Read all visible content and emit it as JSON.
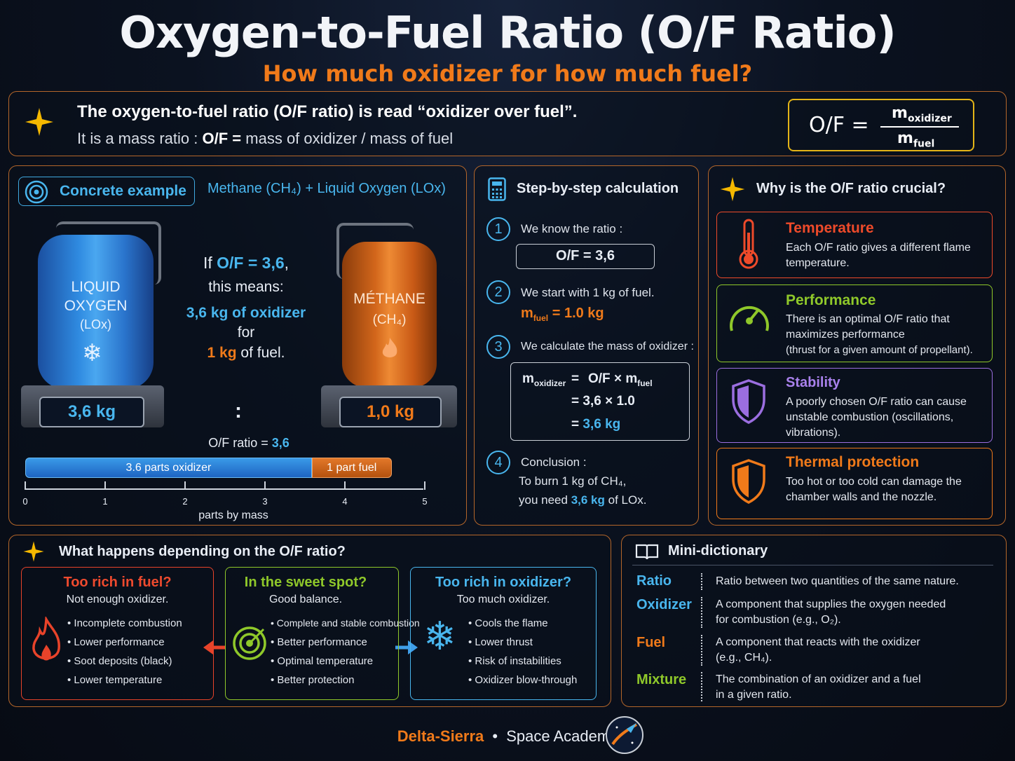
{
  "header": {
    "title": "Oxygen-to-Fuel Ratio (O/F Ratio)",
    "subtitle": "How much oxidizer for how much fuel?"
  },
  "intro": {
    "line1": "The oxygen-to-fuel ratio (O/F ratio) is read “oxidizer over fuel”.",
    "line2_prefix": "It is a mass ratio :",
    "line2_bold": "O/F =",
    "line2_rest": "mass of oxidizer / mass of fuel",
    "formula_lhs": "O/F =",
    "formula_num": "m",
    "formula_num_sub": "oxidizer",
    "formula_den": "m",
    "formula_den_sub": "fuel"
  },
  "example": {
    "badge": "Concrete example",
    "combo": "Methane (CH₄) + Liquid Oxygen (LOx)",
    "tank_left_l1": "LIQUID",
    "tank_left_l2": "OXYGEN",
    "tank_left_l3": "(LOx)",
    "tank_left_mass": "3,6 kg",
    "tank_right_l1": "MÉTHANE",
    "tank_right_l2": "(CH₄)",
    "tank_right_mass": "1,0 kg",
    "if_prefix": "If",
    "if_value": "O/F = 3,6",
    "if_suffix": ",",
    "means": "this means:",
    "oxidizer_amount": "3,6 kg of oxidizer",
    "for": "for",
    "fuel_amount": "1 kg",
    "fuel_suffix": "of fuel.",
    "colon": ":",
    "ratio_label": "O/F ratio =",
    "ratio_value": "3,6",
    "bar_oxidizer_label": "3.6 parts oxidizer",
    "bar_fuel_label": "1 part fuel",
    "bar_oxidizer_parts": 3.6,
    "bar_fuel_parts": 1,
    "axis_ticks": [
      "0",
      "1",
      "2",
      "3",
      "4",
      "5"
    ],
    "axis_label": "parts by mass"
  },
  "steps": {
    "title": "Step-by-step calculation",
    "s1_num": "1",
    "s1_text": "We know the ratio :",
    "s1_box": "O/F = 3,6",
    "s2_num": "2",
    "s2_text": "We start with 1 kg of fuel.",
    "s2_formula_m": "m",
    "s2_formula_sub": "fuel",
    "s2_formula_rest": "= 1.0 kg",
    "s3_num": "3",
    "s3_text": "We calculate the mass of oxidizer :",
    "s3_l1_m": "m",
    "s3_l1_sub": "oxidizer",
    "s3_l1_eq": "=",
    "s3_l1_rhs": "O/F × m",
    "s3_l1_rhs_sub": "fuel",
    "s3_l2": "= 3,6 × 1.0",
    "s3_l3_eq": "=",
    "s3_l3_val": "3,6  kg",
    "s4_num": "4",
    "s4_text": "Conclusion :",
    "s4_l1": "To burn 1 kg of CH₄,",
    "s4_l2_prefix": "you need",
    "s4_l2_val": "3,6  kg",
    "s4_l2_suffix": "of LOx."
  },
  "why": {
    "title": "Why is the O/F ratio crucial?",
    "cards": [
      {
        "title": "Temperature",
        "desc": "Each O/F ratio gives a different flame temperature.",
        "color": "#ee4a2a"
      },
      {
        "title": "Performance",
        "desc": "There is an optimal O/F ratio that maximizes performance",
        "desc2": "(thrust for a given amount of propellant).",
        "color": "#8fc82a"
      },
      {
        "title": "Stability",
        "desc": "A poorly chosen O/F ratio can cause unstable combustion (oscillations, vibrations).",
        "color": "#9b6ee0"
      },
      {
        "title": "Thermal protection",
        "desc": "Too hot or too cold can damage the chamber walls and the nozzle.",
        "color": "#f07a1a"
      }
    ]
  },
  "depends": {
    "title": "What happens depending on the O/F ratio?",
    "rich_fuel": {
      "title": "Too rich in fuel?",
      "sub": "Not enough oxidizer.",
      "items": [
        "• Incomplete combustion",
        "• Lower performance",
        "• Soot deposits (black)",
        "• Lower temperature"
      ],
      "color": "#e8432a"
    },
    "sweet": {
      "title": "In the sweet spot?",
      "sub": "Good balance.",
      "items": [
        "• Complete and stable combustion",
        "• Better performance",
        "• Optimal temperature",
        "• Better protection"
      ],
      "color": "#8fc82a"
    },
    "rich_ox": {
      "title": "Too rich in oxidizer?",
      "sub": "Too much oxidizer.",
      "items": [
        "• Cools the flame",
        "• Lower thrust",
        "• Risk of instabilities",
        "• Oxidizer blow-through"
      ],
      "color": "#49b6ee"
    }
  },
  "dictionary": {
    "title": "Mini-dictionary",
    "entries": [
      {
        "term": "Ratio",
        "def": "Ratio between two quantities of the same nature.",
        "color": "#49b6ee"
      },
      {
        "term": "Oxidizer",
        "def": "A component that supplies the oxygen needed",
        "def2": "for combustion (e.g., O₂).",
        "color": "#49b6ee"
      },
      {
        "term": "Fuel",
        "def": "A component that reacts with the oxidizer",
        "def2": "(e.g., CH₄).",
        "color": "#f07a1a"
      },
      {
        "term": "Mixture",
        "def": "The combination of an oxidizer and a fuel",
        "def2": "in a given ratio.",
        "color": "#8fc82a"
      }
    ]
  },
  "footer": {
    "brand": "Delta-Sierra",
    "dot": "•",
    "academy": "Space Academy"
  }
}
